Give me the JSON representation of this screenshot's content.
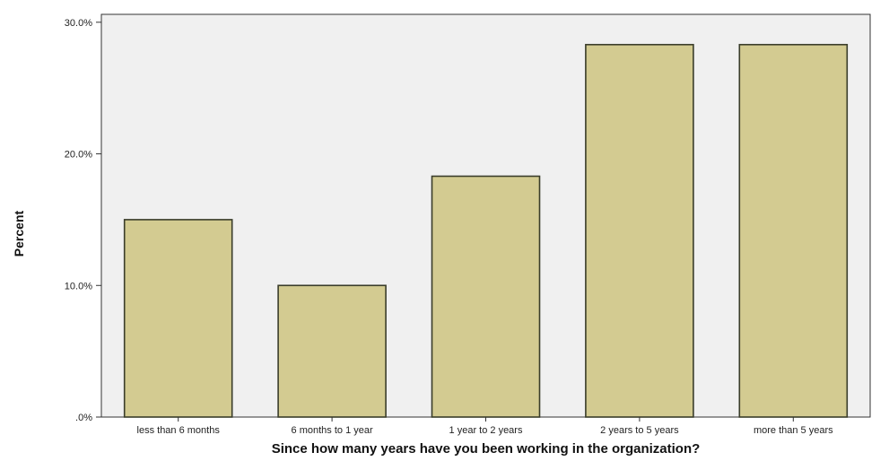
{
  "chart_data": {
    "type": "bar",
    "title": "",
    "xlabel": "Since how many years have you been working in the organization?",
    "ylabel": "Percent",
    "categories": [
      "less than 6 months",
      "6 months to 1 year",
      "1 year to 2 years",
      "2 years to 5 years",
      "more than 5 years"
    ],
    "values": [
      15.0,
      10.0,
      18.3,
      28.3,
      28.3
    ],
    "ylim": [
      0,
      30.6
    ],
    "yticks": [
      0,
      10,
      20,
      30
    ],
    "ytick_labels": [
      ".0%",
      "10.0%",
      "20.0%",
      "30.0%"
    ],
    "grid": false,
    "colors": {
      "bar_fill": "#d3cb91",
      "bar_stroke": "#3a3d2a",
      "plot_background": "#f0f0f0",
      "axis": "#333333"
    }
  }
}
